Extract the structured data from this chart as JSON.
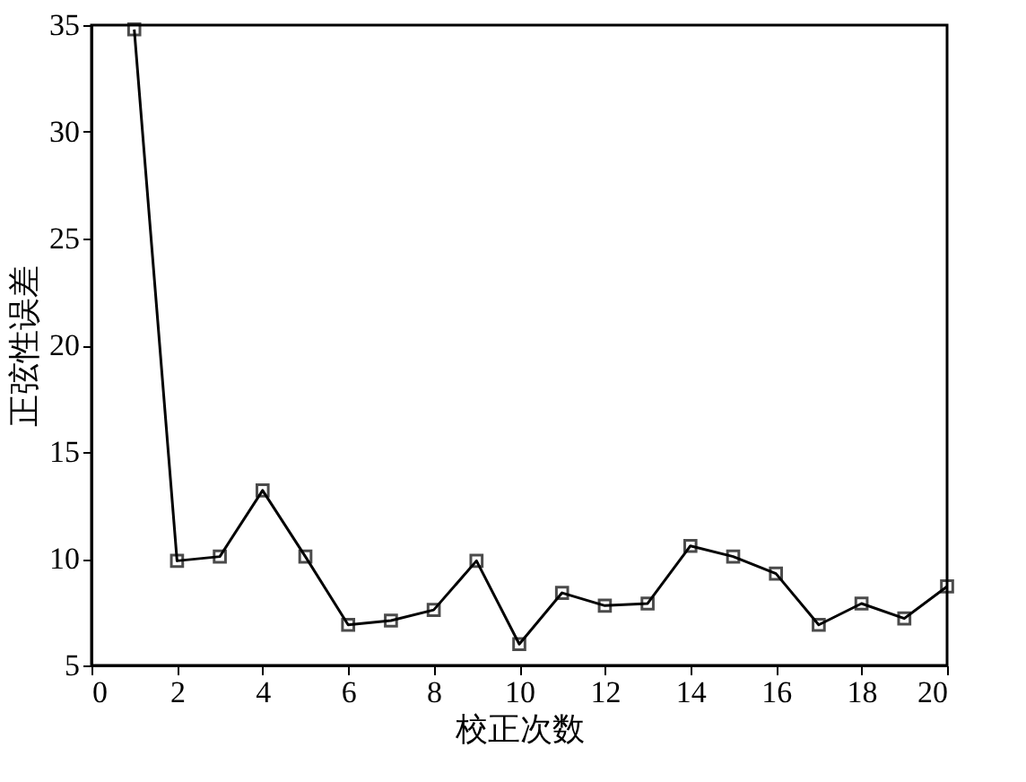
{
  "chart_data": {
    "type": "line",
    "xlabel": "校正次数",
    "ylabel": "正弦性误差",
    "x": [
      1,
      2,
      3,
      4,
      5,
      6,
      7,
      8,
      9,
      10,
      11,
      12,
      13,
      14,
      15,
      16,
      17,
      18,
      19,
      20
    ],
    "series": [
      {
        "color": "#000000",
        "values": [
          34.8,
          9.9,
          10.1,
          13.2,
          10.1,
          6.9,
          7.1,
          7.6,
          9.9,
          6.0,
          8.4,
          7.8,
          7.9,
          10.6,
          10.1,
          9.3,
          6.9,
          7.9,
          7.2,
          8.7
        ]
      }
    ],
    "xlim": [
      0,
      20
    ],
    "xticks": [
      0,
      2,
      4,
      6,
      8,
      10,
      12,
      14,
      16,
      18,
      20
    ],
    "ylim": [
      5,
      35
    ],
    "yticks": [
      5,
      10,
      15,
      20,
      25,
      30,
      35
    ],
    "grid": false,
    "marker": "square",
    "line_style": "solid"
  }
}
